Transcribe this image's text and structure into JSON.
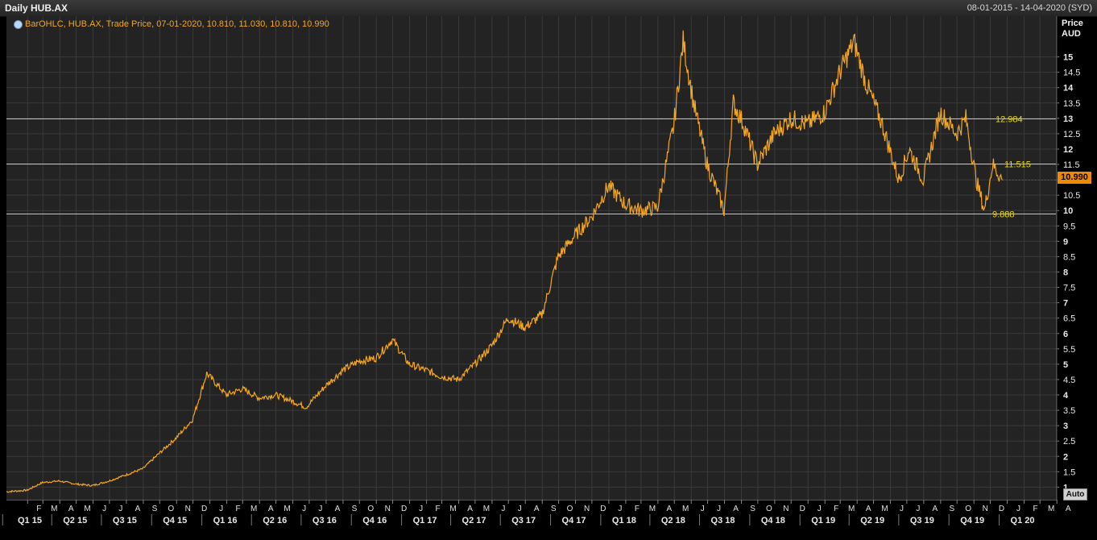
{
  "window": {
    "title": "Daily HUB.AX",
    "range": "08-01-2015 - 14-04-2020 (SYD)"
  },
  "legend": {
    "text": "BarOHLC, HUB.AX, Trade Price, 07-01-2020, 10.810, 11.030, 10.810, 10.990",
    "icon": "chart-series-icon"
  },
  "axis": {
    "y_title_line1": "Price",
    "y_title_line2": "AUD",
    "auto_label": "Auto"
  },
  "colors": {
    "background": "#232323",
    "grid": "#3a3a3a",
    "series": "#f5a623",
    "hlines": "#e8d800",
    "current_box": "#f08a00"
  },
  "chart_data": {
    "type": "line",
    "title": "Daily HUB.AX",
    "ylabel": "Price AUD",
    "ylim": [
      0.6,
      16.0
    ],
    "y_ticks": [
      "1",
      "1.5",
      "2",
      "2.5",
      "3",
      "3.5",
      "4",
      "4.5",
      "5",
      "5.5",
      "6",
      "6.5",
      "7",
      "7.5",
      "8",
      "8.5",
      "9",
      "9.5",
      "10",
      "10.5",
      "11",
      "11.5",
      "12",
      "12.5",
      "13",
      "13.5",
      "14",
      "14.5",
      "15"
    ],
    "month_labels": [
      "F",
      "M",
      "A",
      "M",
      "J",
      "J",
      "A",
      "S",
      "O",
      "N",
      "D",
      "J",
      "F",
      "M",
      "A",
      "M",
      "J",
      "J",
      "A",
      "S",
      "O",
      "N",
      "D",
      "J",
      "F",
      "M",
      "A",
      "M",
      "J",
      "J",
      "A",
      "S",
      "O",
      "N",
      "D",
      "J",
      "F",
      "M",
      "A",
      "M",
      "J",
      "J",
      "A",
      "S",
      "O",
      "N",
      "D",
      "J",
      "F",
      "M",
      "A",
      "M",
      "J",
      "J",
      "A",
      "S",
      "O",
      "N",
      "D",
      "J",
      "F",
      "M",
      "A"
    ],
    "quarter_labels": [
      "Q1 15",
      "Q2 15",
      "Q3 15",
      "Q4 15",
      "Q1 16",
      "Q2 16",
      "Q3 16",
      "Q4 16",
      "Q1 17",
      "Q2 17",
      "Q3 17",
      "Q4 17",
      "Q1 18",
      "Q2 18",
      "Q3 18",
      "Q4 18",
      "Q1 19",
      "Q2 19",
      "Q3 19",
      "Q4 19",
      "Q1 20"
    ],
    "series": [
      {
        "name": "HUB.AX",
        "x": [
          "2015-01-08",
          "2015-02-15",
          "2015-03-15",
          "2015-04-15",
          "2015-05-15",
          "2015-06-15",
          "2015-07-15",
          "2015-08-15",
          "2015-09-15",
          "2015-10-15",
          "2015-11-15",
          "2015-12-15",
          "2016-01-10",
          "2016-02-15",
          "2016-03-15",
          "2016-04-15",
          "2016-05-15",
          "2016-06-15",
          "2016-07-10",
          "2016-08-15",
          "2016-09-15",
          "2016-10-15",
          "2016-11-15",
          "2016-12-15",
          "2017-01-15",
          "2017-02-15",
          "2017-03-15",
          "2017-04-15",
          "2017-05-15",
          "2017-06-15",
          "2017-07-15",
          "2017-08-15",
          "2017-09-15",
          "2017-10-15",
          "2017-11-15",
          "2017-12-15",
          "2018-01-15",
          "2018-02-15",
          "2018-03-15",
          "2018-04-15",
          "2018-05-15",
          "2018-06-01",
          "2018-06-20",
          "2018-07-15",
          "2018-08-15",
          "2018-09-01",
          "2018-09-20",
          "2018-10-15",
          "2018-11-15",
          "2018-12-15",
          "2019-01-15",
          "2019-02-15",
          "2019-03-15",
          "2019-04-10",
          "2019-05-01",
          "2019-06-01",
          "2019-07-01",
          "2019-07-20",
          "2019-08-15",
          "2019-09-15",
          "2019-10-15",
          "2019-11-01",
          "2019-11-20",
          "2019-12-05",
          "2019-12-20",
          "2020-01-07"
        ],
        "values": [
          0.85,
          0.9,
          1.15,
          1.2,
          1.1,
          1.05,
          1.2,
          1.4,
          1.6,
          2.1,
          2.6,
          3.2,
          4.7,
          4.0,
          4.2,
          3.9,
          4.0,
          3.8,
          3.6,
          4.3,
          4.8,
          5.1,
          5.2,
          5.8,
          5.0,
          4.8,
          4.6,
          4.5,
          5.0,
          5.6,
          6.5,
          6.2,
          6.6,
          8.5,
          9.2,
          9.8,
          10.8,
          10.2,
          10.0,
          10.1,
          12.8,
          15.5,
          13.5,
          11.5,
          10.0,
          13.5,
          12.8,
          11.5,
          12.5,
          13.0,
          12.8,
          13.2,
          14.5,
          15.5,
          14.2,
          12.8,
          11.0,
          12.0,
          11.0,
          13.2,
          12.5,
          13.0,
          11.0,
          10.0,
          11.5,
          10.99
        ]
      }
    ],
    "horizontal_lines": [
      {
        "label": "12.984",
        "value": 12.984
      },
      {
        "label": "11.515",
        "value": 11.515
      },
      {
        "label": "9.888",
        "value": 9.888
      }
    ],
    "current_value": "10.990",
    "grid": true
  }
}
